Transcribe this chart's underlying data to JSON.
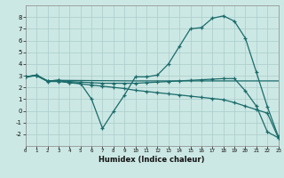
{
  "bg_color": "#cce8e4",
  "grid_color": "#aaccca",
  "line_color": "#1a6b6b",
  "xlabel": "Humidex (Indice chaleur)",
  "ylim": [
    -3,
    9
  ],
  "xlim": [
    0,
    23
  ],
  "yticks": [
    -2,
    -1,
    0,
    1,
    2,
    3,
    4,
    5,
    6,
    7,
    8
  ],
  "xticks": [
    0,
    1,
    2,
    3,
    4,
    5,
    6,
    7,
    8,
    9,
    10,
    11,
    12,
    13,
    14,
    15,
    16,
    17,
    18,
    19,
    20,
    21,
    22,
    23
  ],
  "line1_x": [
    0,
    1,
    2,
    3,
    4,
    5,
    6,
    7,
    8,
    9,
    10,
    11,
    12,
    13,
    14,
    15,
    16,
    17,
    18,
    19,
    20,
    21,
    22,
    23
  ],
  "line1_y": [
    2.9,
    3.05,
    2.55,
    2.6,
    2.4,
    2.35,
    1.0,
    -1.5,
    -0.05,
    1.35,
    2.9,
    2.9,
    3.05,
    4.0,
    5.5,
    7.0,
    7.1,
    7.9,
    8.1,
    7.65,
    6.2,
    3.3,
    0.35,
    -2.2
  ],
  "line2_x": [
    0,
    1,
    2,
    3,
    10,
    23
  ],
  "line2_y": [
    2.9,
    3.05,
    2.55,
    2.6,
    2.55,
    2.55
  ],
  "line3_x": [
    0,
    1,
    2,
    3,
    4,
    5,
    6,
    7,
    8,
    9,
    10,
    11,
    12,
    13,
    14,
    15,
    16,
    17,
    18,
    19,
    20,
    21,
    22,
    23
  ],
  "line3_y": [
    2.9,
    3.0,
    2.5,
    2.5,
    2.4,
    2.3,
    2.2,
    2.1,
    2.0,
    1.9,
    1.75,
    1.65,
    1.55,
    1.45,
    1.35,
    1.25,
    1.15,
    1.05,
    0.95,
    0.7,
    0.4,
    0.1,
    -0.2,
    -2.3
  ],
  "line4_x": [
    0,
    1,
    2,
    3,
    4,
    5,
    6,
    7,
    8,
    9,
    10,
    11,
    12,
    13,
    14,
    15,
    16,
    17,
    18,
    19,
    20,
    21,
    22,
    23
  ],
  "line4_y": [
    2.9,
    3.0,
    2.55,
    2.6,
    2.5,
    2.45,
    2.4,
    2.35,
    2.35,
    2.35,
    2.35,
    2.4,
    2.45,
    2.5,
    2.55,
    2.6,
    2.65,
    2.7,
    2.75,
    2.75,
    1.7,
    0.4,
    -1.8,
    -2.3
  ]
}
